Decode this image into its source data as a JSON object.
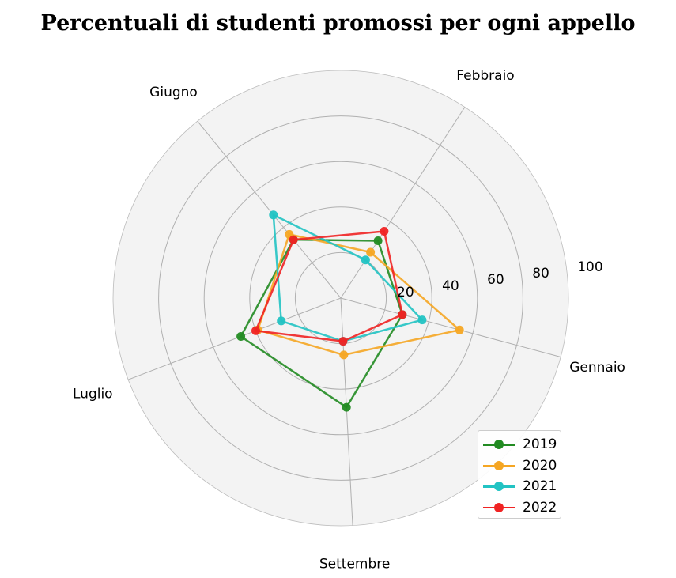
{
  "chart_data": {
    "type": "radar",
    "title": "Percentuali di studenti promossi per ogni appello",
    "categories": [
      "Gennaio",
      "Febbraio",
      "Giugno",
      "Luglio",
      "Settembre"
    ],
    "rlim": [
      0,
      100
    ],
    "rticks": [
      20,
      40,
      60,
      80,
      100
    ],
    "rtick_labels": [
      "20",
      "40",
      "60",
      "80",
      "100"
    ],
    "grid": true,
    "legend_position": "bottom-right",
    "series": [
      {
        "name": "2019",
        "color": "#228b22",
        "values": [
          28,
          30,
          33,
          47,
          48
        ]
      },
      {
        "name": "2020",
        "color": "#f5a623",
        "values": [
          54,
          24,
          36,
          39,
          25
        ]
      },
      {
        "name": "2021",
        "color": "#22c3c3",
        "values": [
          37,
          20,
          47,
          28,
          19
        ]
      },
      {
        "name": "2022",
        "color": "#f02323",
        "values": [
          28,
          35,
          33,
          40,
          19
        ]
      }
    ]
  }
}
